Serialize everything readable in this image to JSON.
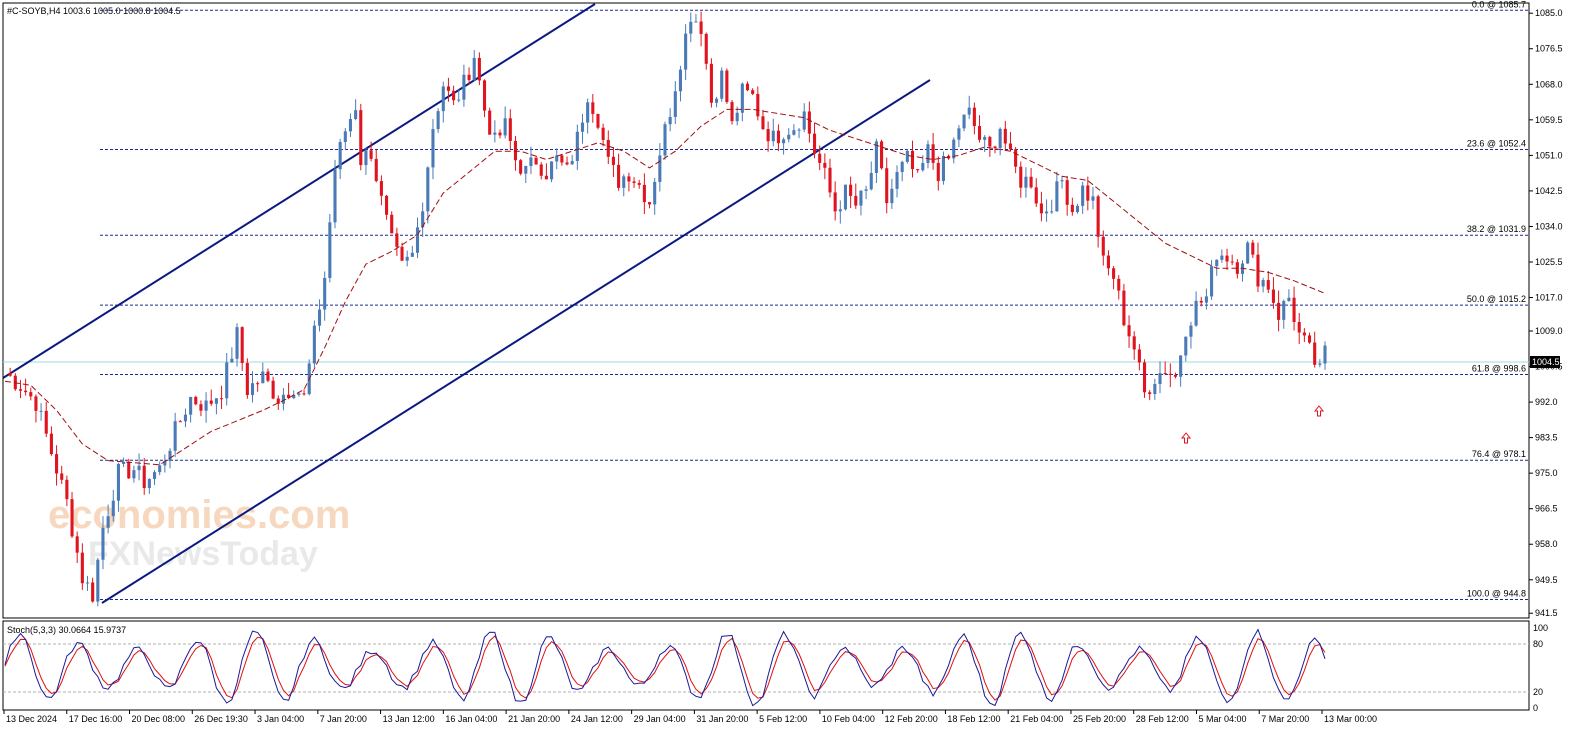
{
  "header": {
    "title": "#C-SOYB,H4 1003.6 1005.0 1000.8 1004.5"
  },
  "watermark": {
    "line1": "economies.com",
    "line2": "FXNewsToday"
  },
  "colors": {
    "bull": "#4a7bb7",
    "bear": "#e0141e",
    "channel": "#0a1a80",
    "fib": "#1a2a90",
    "ma": "#a01010",
    "stoch_main": "#1a1a9a",
    "stoch_signal": "#e01010",
    "price_line": "#9fd8e0"
  },
  "chart_data": [
    {
      "type": "candlestick",
      "symbol": "#C-SOYB",
      "timeframe": "H4",
      "ohlc_last": {
        "open": 1003.6,
        "high": 1005.0,
        "low": 1000.8,
        "close": 1004.5
      },
      "current_price_label": "1004.5",
      "ylim": [
        941.5,
        1085.0
      ],
      "y_ticks": [
        "1085.0",
        "1076.5",
        "1068.0",
        "1059.5",
        "1051.0",
        "1042.5",
        "1034.0",
        "1025.5",
        "1017.0",
        "1009.0",
        "1000.5",
        "992.0",
        "983.5",
        "975.0",
        "966.5",
        "958.0",
        "949.5",
        "941.5"
      ],
      "x_ticks": [
        "13 Dec 2024",
        "17 Dec 16:00",
        "20 Dec 08:00",
        "26 Dec 19:30",
        "3 Jan 04:00",
        "7 Jan 20:00",
        "13 Jan 12:00",
        "16 Jan 04:00",
        "21 Jan 20:00",
        "24 Jan 12:00",
        "29 Jan 04:00",
        "31 Jan 20:00",
        "5 Feb 12:00",
        "10 Feb 04:00",
        "12 Feb 20:00",
        "18 Feb 12:00",
        "21 Feb 04:00",
        "25 Feb 20:00",
        "28 Feb 12:00",
        "5 Mar 04:00",
        "7 Mar 20:00",
        "13 Mar 00:00"
      ],
      "fibonacci": [
        {
          "label": "0.0 @ 1085.7",
          "level": 1085.7
        },
        {
          "label": "23.6 @ 1052.4",
          "level": 1052.4
        },
        {
          "label": "38.2 @ 1031.9",
          "level": 1031.9
        },
        {
          "label": "50.0 @ 1015.2",
          "level": 1015.2
        },
        {
          "label": "61.8 @ 998.6",
          "level": 998.6
        },
        {
          "label": "76.4 @ 978.1",
          "level": 978.1
        },
        {
          "label": "100.0 @ 944.8",
          "level": 944.8
        }
      ],
      "path_points": [
        [
          0,
          999
        ],
        [
          3,
          996
        ],
        [
          6,
          992
        ],
        [
          9,
          980
        ],
        [
          12,
          968
        ],
        [
          15,
          950
        ],
        [
          17,
          946
        ],
        [
          19,
          962
        ],
        [
          22,
          975
        ],
        [
          25,
          976
        ],
        [
          27,
          973
        ],
        [
          30,
          976
        ],
        [
          33,
          985
        ],
        [
          36,
          993
        ],
        [
          39,
          991
        ],
        [
          42,
          995
        ],
        [
          45,
          1008
        ],
        [
          47,
          995
        ],
        [
          50,
          998
        ],
        [
          53,
          993
        ],
        [
          56,
          996
        ],
        [
          58,
          993
        ],
        [
          60,
          1008
        ],
        [
          62,
          1022
        ],
        [
          64,
          1048
        ],
        [
          66,
          1057
        ],
        [
          68,
          1063
        ],
        [
          69,
          1050
        ],
        [
          71,
          1052
        ],
        [
          73,
          1040
        ],
        [
          75,
          1030
        ],
        [
          77,
          1024
        ],
        [
          79,
          1027
        ],
        [
          81,
          1040
        ],
        [
          83,
          1058
        ],
        [
          85,
          1068
        ],
        [
          87,
          1063
        ],
        [
          89,
          1068
        ],
        [
          91,
          1075
        ],
        [
          93,
          1062
        ],
        [
          95,
          1054
        ],
        [
          97,
          1058
        ],
        [
          99,
          1050
        ],
        [
          101,
          1047
        ],
        [
          103,
          1050
        ],
        [
          105,
          1047
        ],
        [
          107,
          1050
        ],
        [
          109,
          1047
        ],
        [
          111,
          1055
        ],
        [
          113,
          1066
        ],
        [
          115,
          1060
        ],
        [
          117,
          1049
        ],
        [
          119,
          1045
        ],
        [
          121,
          1047
        ],
        [
          123,
          1044
        ],
        [
          125,
          1040
        ],
        [
          127,
          1052
        ],
        [
          129,
          1062
        ],
        [
          131,
          1074
        ],
        [
          133,
          1085
        ],
        [
          135,
          1082
        ],
        [
          137,
          1064
        ],
        [
          139,
          1070
        ],
        [
          141,
          1058
        ],
        [
          143,
          1066
        ],
        [
          145,
          1065
        ],
        [
          147,
          1058
        ],
        [
          149,
          1055
        ],
        [
          151,
          1057
        ],
        [
          153,
          1058
        ],
        [
          155,
          1061
        ],
        [
          157,
          1052
        ],
        [
          159,
          1046
        ],
        [
          161,
          1038
        ],
        [
          163,
          1042
        ],
        [
          165,
          1039
        ],
        [
          167,
          1042
        ],
        [
          169,
          1052
        ],
        [
          171,
          1040
        ],
        [
          173,
          1046
        ],
        [
          175,
          1050
        ],
        [
          177,
          1045
        ],
        [
          179,
          1052
        ],
        [
          181,
          1047
        ],
        [
          183,
          1050
        ],
        [
          185,
          1058
        ],
        [
          187,
          1061
        ],
        [
          189,
          1055
        ],
        [
          191,
          1052
        ],
        [
          193,
          1058
        ],
        [
          195,
          1050
        ],
        [
          197,
          1045
        ],
        [
          199,
          1045
        ],
        [
          201,
          1037
        ],
        [
          203,
          1040
        ],
        [
          205,
          1045
        ],
        [
          207,
          1038
        ],
        [
          209,
          1043
        ],
        [
          211,
          1040
        ],
        [
          213,
          1025
        ],
        [
          215,
          1022
        ],
        [
          217,
          1012
        ],
        [
          219,
          1005
        ],
        [
          221,
          994
        ],
        [
          223,
          998
        ],
        [
          225,
          1000
        ],
        [
          227,
          998
        ],
        [
          229,
          1010
        ],
        [
          231,
          1015
        ],
        [
          233,
          1017
        ],
        [
          235,
          1028
        ],
        [
          237,
          1027
        ],
        [
          239,
          1025
        ],
        [
          241,
          1029
        ],
        [
          243,
          1022
        ],
        [
          245,
          1020
        ],
        [
          247,
          1013
        ],
        [
          249,
          1017
        ],
        [
          251,
          1008
        ],
        [
          253,
          1004
        ],
        [
          255,
          999
        ],
        [
          256,
          1004
        ]
      ],
      "moving_average_points": [
        [
          0,
          997
        ],
        [
          5,
          996
        ],
        [
          10,
          990
        ],
        [
          15,
          982
        ],
        [
          20,
          978
        ],
        [
          30,
          977
        ],
        [
          40,
          985
        ],
        [
          50,
          990
        ],
        [
          55,
          993
        ],
        [
          58,
          995
        ],
        [
          62,
          1005
        ],
        [
          66,
          1016
        ],
        [
          70,
          1025
        ],
        [
          75,
          1028
        ],
        [
          80,
          1032
        ],
        [
          85,
          1042
        ],
        [
          90,
          1047
        ],
        [
          95,
          1052
        ],
        [
          100,
          1052
        ],
        [
          105,
          1050
        ],
        [
          110,
          1052
        ],
        [
          115,
          1054
        ],
        [
          120,
          1052
        ],
        [
          125,
          1048
        ],
        [
          130,
          1052
        ],
        [
          135,
          1058
        ],
        [
          140,
          1062
        ],
        [
          145,
          1062
        ],
        [
          150,
          1061
        ],
        [
          155,
          1060
        ],
        [
          160,
          1057
        ],
        [
          165,
          1055
        ],
        [
          170,
          1053
        ],
        [
          175,
          1051
        ],
        [
          180,
          1050
        ],
        [
          185,
          1051
        ],
        [
          190,
          1053
        ],
        [
          195,
          1052
        ],
        [
          200,
          1049
        ],
        [
          205,
          1046
        ],
        [
          210,
          1045
        ],
        [
          215,
          1040
        ],
        [
          220,
          1035
        ],
        [
          225,
          1030
        ],
        [
          230,
          1027
        ],
        [
          235,
          1024
        ],
        [
          240,
          1024
        ],
        [
          245,
          1023
        ],
        [
          250,
          1021
        ],
        [
          256,
          1018
        ]
      ],
      "markers": [
        "up-arrow near 992 (4 Mar)",
        "up-arrow near 998 (12 Mar)"
      ]
    },
    {
      "type": "line",
      "title": "Stoch(5,3,3) 30.0664 15.9737",
      "ylim": [
        0,
        100
      ],
      "y_ticks": [
        "100",
        "80",
        "20",
        "0"
      ],
      "levels": [
        80,
        20
      ]
    }
  ]
}
